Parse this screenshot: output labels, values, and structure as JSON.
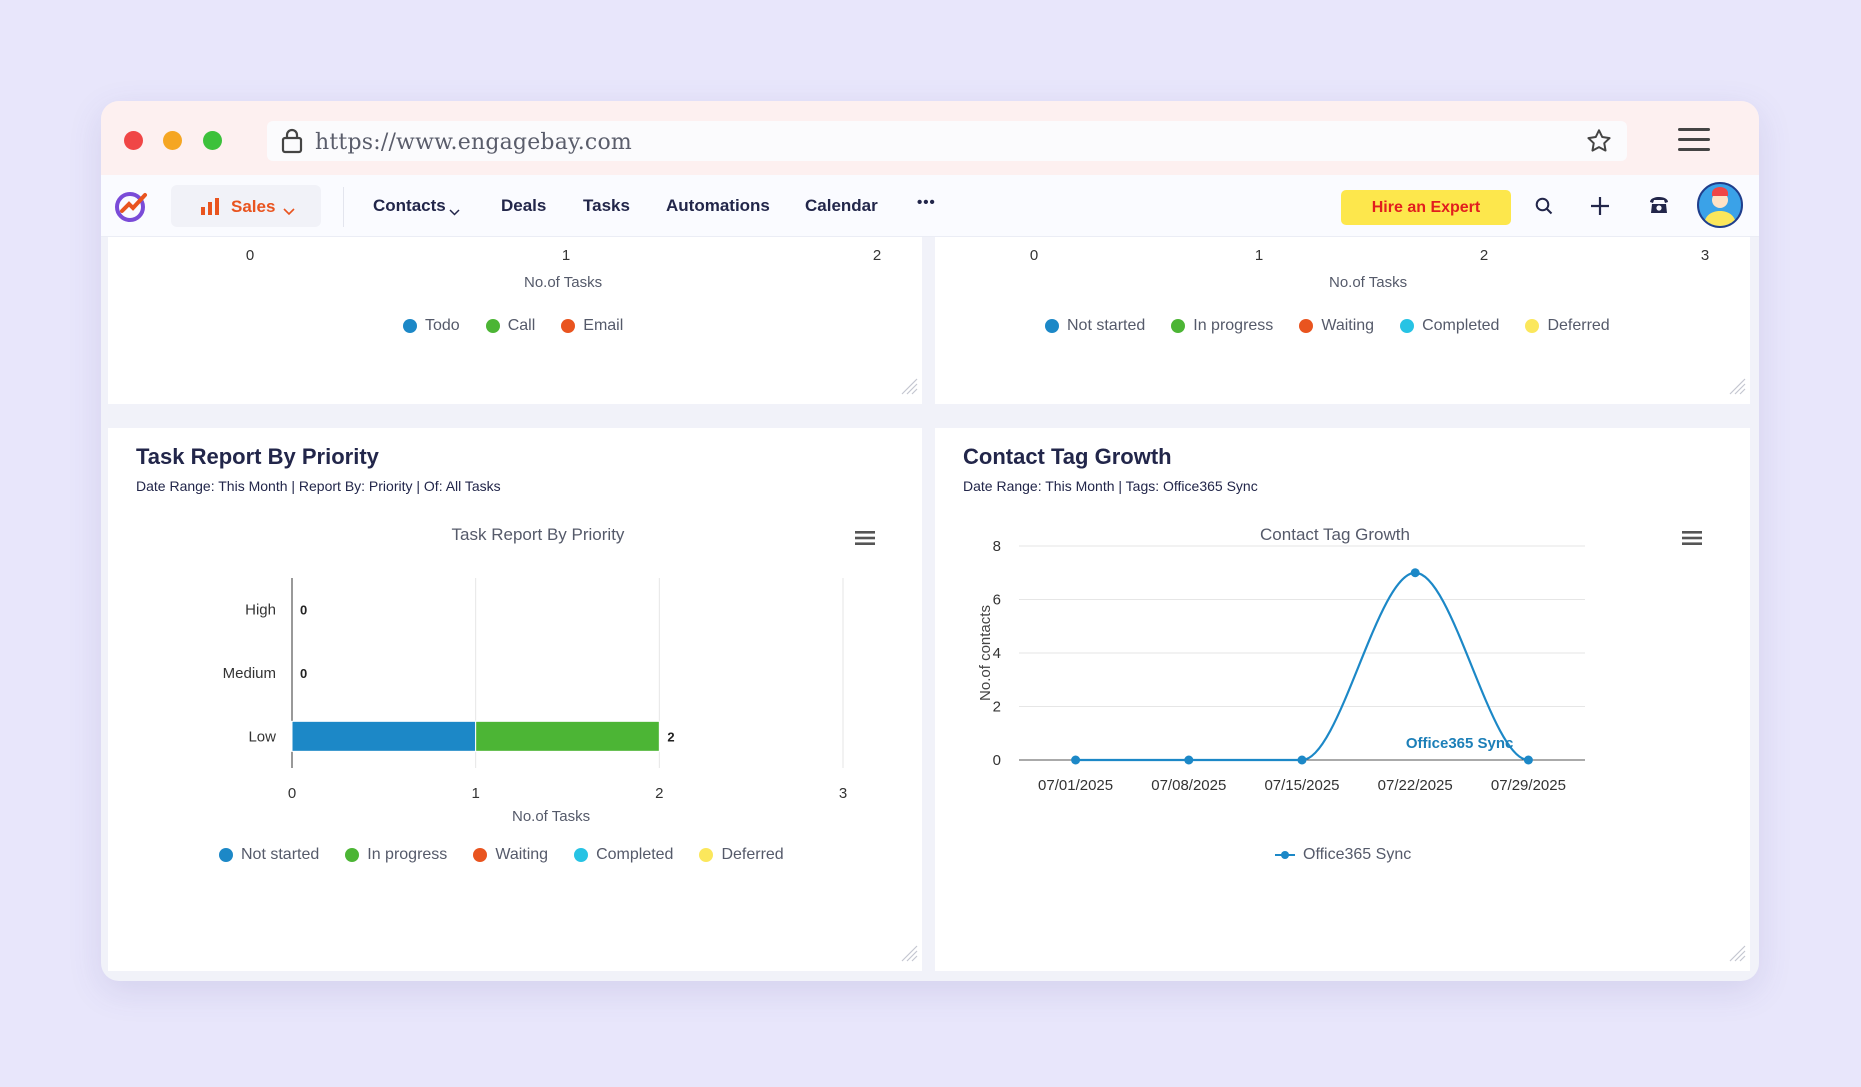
{
  "browser": {
    "url": "https://www.engagebay.com"
  },
  "navbar": {
    "app": "Sales",
    "items": [
      "Contacts",
      "Deals",
      "Tasks",
      "Automations",
      "Calendar"
    ],
    "more": "•••",
    "hire": "Hire an Expert"
  },
  "colors": {
    "not_started": "#1c88c7",
    "in_progress": "#4cb535",
    "waiting": "#e9541f",
    "completed": "#27c3e4",
    "deferred": "#fbe75c",
    "todo": "#1c88c7",
    "call": "#4cb535",
    "email": "#e9541f",
    "line": "#1c88c7",
    "sync_label": "#1c7fb8"
  },
  "top_left": {
    "ticks": [
      "0",
      "1",
      "2"
    ],
    "xlabel": "No.of Tasks",
    "legend": [
      {
        "label": "Todo",
        "color": "#1c88c7"
      },
      {
        "label": "Call",
        "color": "#4cb535"
      },
      {
        "label": "Email",
        "color": "#e9541f"
      }
    ]
  },
  "top_right": {
    "ticks": [
      "0",
      "1",
      "2",
      "3"
    ],
    "xlabel": "No.of Tasks",
    "legend": [
      {
        "label": "Not started",
        "color": "#1c88c7"
      },
      {
        "label": "In progress",
        "color": "#4cb535"
      },
      {
        "label": "Waiting",
        "color": "#e9541f"
      },
      {
        "label": "Completed",
        "color": "#27c3e4"
      },
      {
        "label": "Deferred",
        "color": "#fbe75c"
      }
    ]
  },
  "priority_panel": {
    "title": "Task Report By Priority",
    "subtitle": "Date Range: This Month | Report By: Priority | Of: All Tasks"
  },
  "tag_panel": {
    "title": "Contact Tag Growth",
    "subtitle": "Date Range: This Month | Tags: Office365 Sync"
  },
  "chart_data": [
    {
      "type": "bar",
      "orientation": "horizontal",
      "stacked": true,
      "title": "Task Report By Priority",
      "xlabel": "No.of Tasks",
      "xlim": [
        0,
        3
      ],
      "xticks": [
        "0",
        "1",
        "2",
        "3"
      ],
      "categories": [
        "High",
        "Medium",
        "Low"
      ],
      "totals": [
        0,
        0,
        2
      ],
      "series": [
        {
          "name": "Not started",
          "values": [
            0,
            0,
            1
          ],
          "color": "#1c88c7"
        },
        {
          "name": "In progress",
          "values": [
            0,
            0,
            1
          ],
          "color": "#4cb535"
        },
        {
          "name": "Waiting",
          "values": [
            0,
            0,
            0
          ],
          "color": "#e9541f"
        },
        {
          "name": "Completed",
          "values": [
            0,
            0,
            0
          ],
          "color": "#27c3e4"
        },
        {
          "name": "Deferred",
          "values": [
            0,
            0,
            0
          ],
          "color": "#fbe75c"
        }
      ],
      "grid": true,
      "legend": "bottom"
    },
    {
      "type": "line",
      "title": "Contact Tag Growth",
      "ylabel": "No.of contacts",
      "ylim": [
        0,
        8
      ],
      "yticks": [
        "0",
        "2",
        "4",
        "6",
        "8"
      ],
      "x": [
        "07/01/2025",
        "07/08/2025",
        "07/15/2025",
        "07/22/2025",
        "07/29/2025"
      ],
      "series": [
        {
          "name": "Office365 Sync",
          "values": [
            0,
            0,
            0,
            7,
            0
          ],
          "color": "#1c88c7"
        }
      ],
      "annotation": "Office365 Sync",
      "grid": true,
      "legend": "bottom"
    }
  ]
}
